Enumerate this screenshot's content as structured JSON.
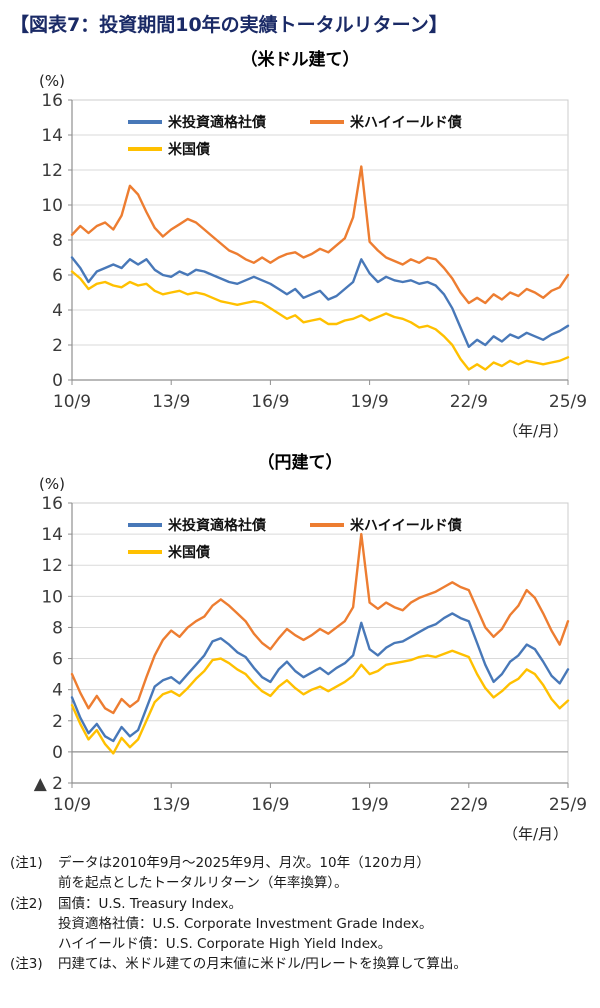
{
  "page_title": "【図表7：投資期間10年の実績トータルリターン】",
  "notes": [
    {
      "label": "(注1)",
      "lines": [
        "データは2010年9月～2025年9月、月次。10年（120カ月）",
        "前を起点としたトータルリターン（年率換算）。"
      ]
    },
    {
      "label": "(注2)",
      "lines": [
        "国債：U.S. Treasury Index。",
        "投資適格社債：U.S. Corporate Investment Grade Index。",
        "ハイイールド債：U.S. Corporate High Yield Index。"
      ]
    },
    {
      "label": "(注3)",
      "lines": [
        "円建ては、米ドル建ての月末値に米ドル/円レートを換算して算出。"
      ]
    }
  ],
  "chart_data": [
    {
      "type": "line",
      "title": "（米ドル建て）",
      "ylabel": "(%)",
      "xlabel": "（年/月）",
      "ylim": [
        0,
        16
      ],
      "y_ticks": [
        0,
        2,
        4,
        6,
        8,
        10,
        12,
        14,
        16
      ],
      "y_tick_labels": [
        "0",
        "2",
        "4",
        "6",
        "8",
        "10",
        "12",
        "14",
        "16"
      ],
      "x_total_months": 180,
      "x_start": "2010/9",
      "x_end": "2025/9",
      "x_tick_positions": [
        0,
        36,
        72,
        108,
        144,
        180
      ],
      "x_tick_labels": [
        "10/9",
        "13/9",
        "16/9",
        "19/9",
        "22/9",
        "25/9"
      ],
      "grid": "horizontal",
      "legend_position": "top-inside",
      "series": [
        {
          "name": "米投資適格社債",
          "color": "#4878b8",
          "values": [
            7.0,
            6.4,
            5.6,
            6.2,
            6.4,
            6.6,
            6.4,
            6.9,
            6.6,
            6.9,
            6.3,
            6.0,
            5.9,
            6.2,
            6.0,
            6.3,
            6.2,
            6.0,
            5.8,
            5.6,
            5.5,
            5.7,
            5.9,
            5.7,
            5.5,
            5.2,
            4.9,
            5.2,
            4.7,
            4.9,
            5.1,
            4.6,
            4.8,
            5.2,
            5.6,
            6.9,
            6.1,
            5.6,
            5.9,
            5.7,
            5.6,
            5.7,
            5.5,
            5.6,
            5.4,
            4.9,
            4.1,
            3.0,
            1.9,
            2.3,
            2.0,
            2.5,
            2.2,
            2.6,
            2.4,
            2.7,
            2.5,
            2.3,
            2.6,
            2.8,
            3.1
          ]
        },
        {
          "name": "米ハイイールド債",
          "color": "#ed7d31",
          "values": [
            8.3,
            8.8,
            8.4,
            8.8,
            9.0,
            8.6,
            9.4,
            11.1,
            10.6,
            9.6,
            8.7,
            8.2,
            8.6,
            8.9,
            9.2,
            9.0,
            8.6,
            8.2,
            7.8,
            7.4,
            7.2,
            6.9,
            6.7,
            7.0,
            6.7,
            7.0,
            7.2,
            7.3,
            7.0,
            7.2,
            7.5,
            7.3,
            7.7,
            8.1,
            9.3,
            12.2,
            7.9,
            7.4,
            7.0,
            6.8,
            6.6,
            6.9,
            6.7,
            7.0,
            6.9,
            6.4,
            5.8,
            5.0,
            4.4,
            4.7,
            4.4,
            4.9,
            4.6,
            5.0,
            4.8,
            5.2,
            5.0,
            4.7,
            5.1,
            5.3,
            6.0
          ]
        },
        {
          "name": "米国債",
          "color": "#ffc000",
          "values": [
            6.2,
            5.8,
            5.2,
            5.5,
            5.6,
            5.4,
            5.3,
            5.6,
            5.4,
            5.5,
            5.1,
            4.9,
            5.0,
            5.1,
            4.9,
            5.0,
            4.9,
            4.7,
            4.5,
            4.4,
            4.3,
            4.4,
            4.5,
            4.4,
            4.1,
            3.8,
            3.5,
            3.7,
            3.3,
            3.4,
            3.5,
            3.2,
            3.2,
            3.4,
            3.5,
            3.7,
            3.4,
            3.6,
            3.8,
            3.6,
            3.5,
            3.3,
            3.0,
            3.1,
            2.9,
            2.5,
            2.0,
            1.2,
            0.6,
            0.9,
            0.6,
            1.0,
            0.8,
            1.1,
            0.9,
            1.1,
            1.0,
            0.9,
            1.0,
            1.1,
            1.3
          ]
        }
      ]
    },
    {
      "type": "line",
      "title": "（円建て）",
      "ylabel": "(%)",
      "xlabel": "（年/月）",
      "ylim": [
        -2,
        16
      ],
      "y_ticks": [
        -2,
        0,
        2,
        4,
        6,
        8,
        10,
        12,
        14,
        16
      ],
      "y_tick_labels": [
        "▲ 2",
        "0",
        "2",
        "4",
        "6",
        "8",
        "10",
        "12",
        "14",
        "16"
      ],
      "x_total_months": 180,
      "x_start": "2010/9",
      "x_end": "2025/9",
      "x_tick_positions": [
        0,
        36,
        72,
        108,
        144,
        180
      ],
      "x_tick_labels": [
        "10/9",
        "13/9",
        "16/9",
        "19/9",
        "22/9",
        "25/9"
      ],
      "grid": "horizontal",
      "legend_position": "top-inside",
      "series": [
        {
          "name": "米投資適格社債",
          "color": "#4878b8",
          "values": [
            3.5,
            2.2,
            1.2,
            1.8,
            1.0,
            0.7,
            1.6,
            1.0,
            1.4,
            2.8,
            4.2,
            4.6,
            4.8,
            4.4,
            5.0,
            5.6,
            6.2,
            7.1,
            7.3,
            6.9,
            6.4,
            6.1,
            5.4,
            4.8,
            4.5,
            5.3,
            5.8,
            5.2,
            4.8,
            5.1,
            5.4,
            5.0,
            5.4,
            5.7,
            6.2,
            8.3,
            6.6,
            6.2,
            6.7,
            7.0,
            7.1,
            7.4,
            7.7,
            8.0,
            8.2,
            8.6,
            8.9,
            8.6,
            8.4,
            7.0,
            5.6,
            4.5,
            5.0,
            5.8,
            6.2,
            6.9,
            6.6,
            5.8,
            4.9,
            4.4,
            5.3
          ]
        },
        {
          "name": "米ハイイールド債",
          "color": "#ed7d31",
          "values": [
            5.0,
            3.8,
            2.8,
            3.6,
            2.8,
            2.5,
            3.4,
            2.9,
            3.3,
            4.8,
            6.2,
            7.2,
            7.8,
            7.4,
            8.0,
            8.4,
            8.7,
            9.4,
            9.8,
            9.4,
            8.9,
            8.4,
            7.6,
            7.0,
            6.6,
            7.3,
            7.9,
            7.5,
            7.2,
            7.5,
            7.9,
            7.6,
            8.0,
            8.4,
            9.3,
            14.0,
            9.6,
            9.2,
            9.6,
            9.3,
            9.1,
            9.6,
            9.9,
            10.1,
            10.3,
            10.6,
            10.9,
            10.6,
            10.4,
            9.2,
            8.0,
            7.4,
            7.9,
            8.8,
            9.4,
            10.4,
            9.9,
            8.9,
            7.8,
            6.9,
            8.4
          ]
        },
        {
          "name": "米国債",
          "color": "#ffc000",
          "values": [
            3.0,
            1.8,
            0.8,
            1.4,
            0.5,
            -0.1,
            0.9,
            0.3,
            0.8,
            2.0,
            3.2,
            3.7,
            3.9,
            3.6,
            4.1,
            4.7,
            5.2,
            5.9,
            6.0,
            5.7,
            5.3,
            5.0,
            4.4,
            3.9,
            3.6,
            4.2,
            4.6,
            4.1,
            3.7,
            4.0,
            4.2,
            3.9,
            4.2,
            4.5,
            4.9,
            5.6,
            5.0,
            5.2,
            5.6,
            5.7,
            5.8,
            5.9,
            6.1,
            6.2,
            6.1,
            6.3,
            6.5,
            6.3,
            6.1,
            5.0,
            4.1,
            3.5,
            3.9,
            4.4,
            4.7,
            5.3,
            5.0,
            4.3,
            3.4,
            2.8,
            3.3
          ]
        }
      ]
    }
  ]
}
